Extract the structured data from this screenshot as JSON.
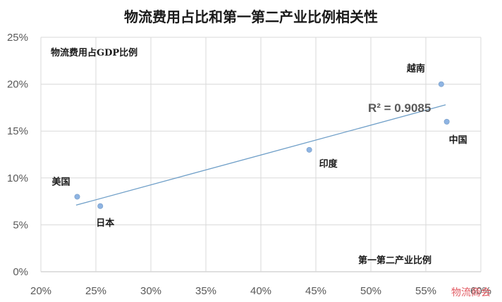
{
  "chart_data": {
    "type": "scatter",
    "title": "物流费用占比和第一第二产业比例相关性",
    "ylabel": "物流费用占GDP比例",
    "xlabel": "第一第二产业比例",
    "xlim": [
      20,
      60
    ],
    "ylim": [
      0,
      25
    ],
    "x_ticks": [
      20,
      25,
      30,
      35,
      40,
      45,
      50,
      55,
      60
    ],
    "y_ticks": [
      0,
      5,
      10,
      15,
      20,
      25
    ],
    "x_tick_labels": [
      "20%",
      "25%",
      "30%",
      "35%",
      "40%",
      "45%",
      "50%",
      "55%",
      "60%"
    ],
    "y_tick_labels": [
      "0%",
      "5%",
      "10%",
      "15%",
      "20%",
      "25%"
    ],
    "grid": true,
    "points": [
      {
        "label": "美国",
        "x": 23.3,
        "y": 8.0
      },
      {
        "label": "日本",
        "x": 25.4,
        "y": 7.0
      },
      {
        "label": "印度",
        "x": 44.4,
        "y": 13.0
      },
      {
        "label": "越南",
        "x": 56.4,
        "y": 20.0
      },
      {
        "label": "中国",
        "x": 56.9,
        "y": 16.0
      }
    ],
    "trendline": {
      "x": [
        23.2,
        56.8
      ],
      "y": [
        7.1,
        17.8
      ]
    },
    "annotations": {
      "r_squared": "R² = 0.9085"
    },
    "point_color": "#8eb4e3",
    "trendline_color": "#6f9fc8",
    "grid_color": "#d9d9d9"
  },
  "watermark": {
    "text": "物流商会"
  }
}
